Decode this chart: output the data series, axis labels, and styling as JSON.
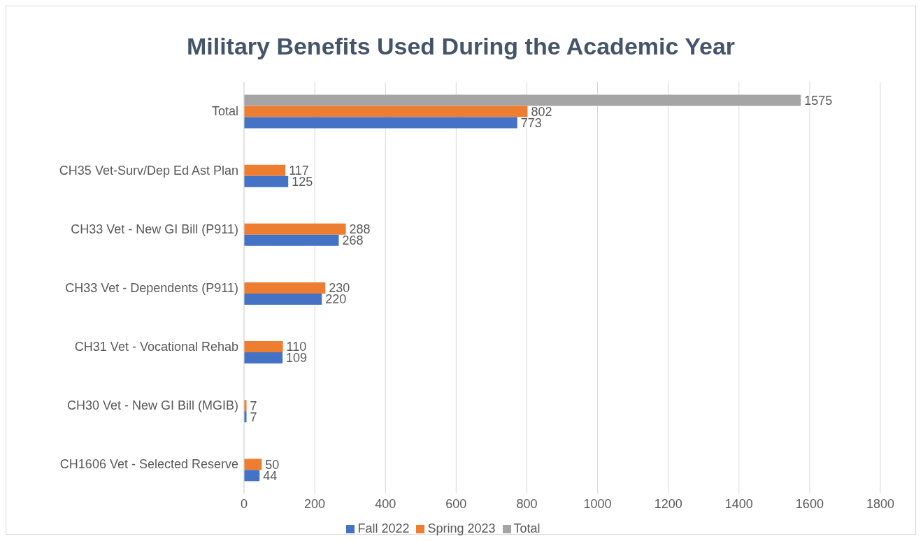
{
  "chart_data": {
    "type": "bar",
    "orientation": "horizontal",
    "title": "Military Benefits Used During the Academic Year",
    "categories": [
      "Total",
      "CH35 Vet-Surv/Dep Ed Ast Plan",
      "CH33 Vet - New GI Bill (P911)",
      "CH33 Vet - Dependents (P911)",
      "CH31 Vet - Vocational Rehab",
      "CH30 Vet - New GI Bill (MGIB)",
      "CH1606 Vet - Selected Reserve"
    ],
    "series": [
      {
        "name": "Total",
        "color": "#a5a5a5",
        "values": [
          1575,
          null,
          null,
          null,
          null,
          null,
          null
        ]
      },
      {
        "name": "Spring 2023",
        "color": "#ed7d31",
        "values": [
          802,
          117,
          288,
          230,
          110,
          7,
          50
        ]
      },
      {
        "name": "Fall 2022",
        "color": "#4472c4",
        "values": [
          773,
          125,
          268,
          220,
          109,
          7,
          44
        ]
      }
    ],
    "xlim": [
      0,
      1800
    ],
    "xticks": [
      0,
      200,
      400,
      600,
      800,
      1000,
      1200,
      1400,
      1600,
      1800
    ],
    "grid": "x",
    "legend": "bottom",
    "data_labels": true
  }
}
